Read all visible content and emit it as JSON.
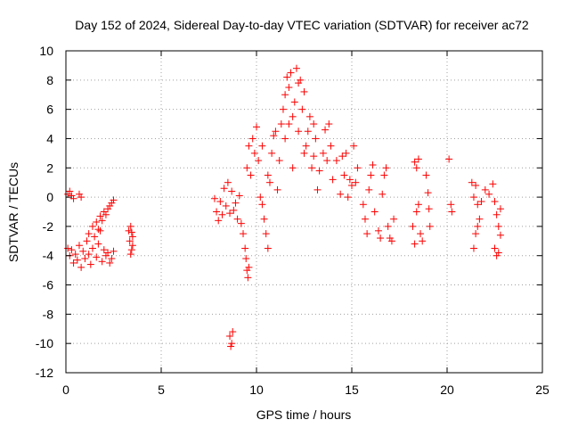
{
  "chart_data": {
    "type": "scatter",
    "title": "Day 152 of 2024, Sidereal Day-to-day VTEC variation (SDTVAR) for receiver ac72",
    "xlabel": "GPS time / hours",
    "ylabel": "SDTVAR / TECUs",
    "xlim": [
      0,
      25
    ],
    "ylim": [
      -12,
      10
    ],
    "xticks": [
      0,
      5,
      10,
      15,
      20,
      25
    ],
    "yticks": [
      -12,
      -10,
      -8,
      -6,
      -4,
      -2,
      0,
      2,
      4,
      6,
      8,
      10
    ],
    "grid": true,
    "marker": "+",
    "color": "#ff0000",
    "series": [
      {
        "name": "SDTVAR",
        "points": [
          [
            0.1,
            0.2
          ],
          [
            0.2,
            0.4
          ],
          [
            0.3,
            0.1
          ],
          [
            0.4,
            -0.1
          ],
          [
            0.7,
            0.2
          ],
          [
            0.8,
            0.0
          ],
          [
            0.1,
            -3.5
          ],
          [
            0.2,
            -4.0
          ],
          [
            0.3,
            -3.6
          ],
          [
            0.4,
            -4.5
          ],
          [
            0.5,
            -3.9
          ],
          [
            0.6,
            -4.3
          ],
          [
            0.7,
            -3.3
          ],
          [
            0.8,
            -4.8
          ],
          [
            0.9,
            -3.7
          ],
          [
            1.0,
            -4.2
          ],
          [
            1.1,
            -3.0
          ],
          [
            1.2,
            -3.9
          ],
          [
            1.3,
            -4.6
          ],
          [
            1.4,
            -3.5
          ],
          [
            1.5,
            -2.7
          ],
          [
            1.6,
            -4.1
          ],
          [
            1.7,
            -3.2
          ],
          [
            1.8,
            -2.3
          ],
          [
            1.9,
            -4.4
          ],
          [
            2.0,
            -3.6
          ],
          [
            2.1,
            -4.0
          ],
          [
            2.2,
            -3.8
          ],
          [
            2.3,
            -4.5
          ],
          [
            2.4,
            -4.2
          ],
          [
            2.5,
            -3.7
          ],
          [
            1.2,
            -2.5
          ],
          [
            1.4,
            -2.0
          ],
          [
            1.6,
            -1.7
          ],
          [
            1.7,
            -2.2
          ],
          [
            1.8,
            -1.3
          ],
          [
            1.9,
            -1.6
          ],
          [
            2.0,
            -1.0
          ],
          [
            2.1,
            -1.2
          ],
          [
            2.2,
            -0.8
          ],
          [
            2.3,
            -0.6
          ],
          [
            2.4,
            -0.4
          ],
          [
            2.5,
            -0.2
          ],
          [
            3.3,
            -2.3
          ],
          [
            3.35,
            -3.0
          ],
          [
            3.4,
            -2.0
          ],
          [
            3.45,
            -3.6
          ],
          [
            3.5,
            -2.7
          ],
          [
            3.4,
            -3.9
          ],
          [
            3.45,
            -2.4
          ],
          [
            3.5,
            -3.3
          ],
          [
            7.8,
            -0.1
          ],
          [
            7.9,
            -1.0
          ],
          [
            8.0,
            -1.6
          ],
          [
            8.1,
            -0.3
          ],
          [
            8.2,
            -1.2
          ],
          [
            8.3,
            0.6
          ],
          [
            8.4,
            -0.6
          ],
          [
            8.5,
            1.0
          ],
          [
            8.6,
            -1.1
          ],
          [
            8.7,
            0.4
          ],
          [
            8.8,
            -0.9
          ],
          [
            8.9,
            -0.4
          ],
          [
            9.0,
            -1.5
          ],
          [
            9.1,
            0.1
          ],
          [
            9.2,
            -1.8
          ],
          [
            9.3,
            -2.5
          ],
          [
            9.4,
            -3.5
          ],
          [
            9.45,
            -4.2
          ],
          [
            9.5,
            -5.0
          ],
          [
            9.55,
            -5.5
          ],
          [
            9.6,
            -4.8
          ],
          [
            9.5,
            2.0
          ],
          [
            9.6,
            3.5
          ],
          [
            9.7,
            1.5
          ],
          [
            9.8,
            4.0
          ],
          [
            9.9,
            3.0
          ],
          [
            10.0,
            4.8
          ],
          [
            10.1,
            2.5
          ],
          [
            10.2,
            0.0
          ],
          [
            10.3,
            -0.5
          ],
          [
            10.4,
            -1.5
          ],
          [
            10.5,
            -2.5
          ],
          [
            10.6,
            -3.5
          ],
          [
            10.7,
            1.0
          ],
          [
            10.8,
            3.0
          ],
          [
            10.9,
            4.2
          ],
          [
            11.0,
            4.5
          ],
          [
            11.1,
            0.5
          ],
          [
            11.2,
            2.5
          ],
          [
            11.3,
            5.0
          ],
          [
            11.4,
            6.0
          ],
          [
            11.5,
            7.0
          ],
          [
            11.6,
            8.2
          ],
          [
            11.7,
            7.5
          ],
          [
            11.8,
            8.5
          ],
          [
            11.9,
            5.5
          ],
          [
            12.0,
            6.5
          ],
          [
            12.1,
            8.8
          ],
          [
            12.2,
            7.8
          ],
          [
            12.3,
            8.0
          ],
          [
            12.4,
            6.0
          ],
          [
            12.5,
            7.2
          ],
          [
            12.6,
            3.5
          ],
          [
            12.7,
            4.5
          ],
          [
            12.8,
            5.5
          ],
          [
            12.9,
            2.0
          ],
          [
            13.0,
            2.8
          ],
          [
            13.1,
            4.0
          ],
          [
            13.2,
            0.5
          ],
          [
            13.3,
            1.8
          ],
          [
            13.5,
            3.0
          ],
          [
            13.6,
            4.6
          ],
          [
            13.7,
            2.5
          ],
          [
            13.8,
            5.0
          ],
          [
            13.9,
            3.5
          ],
          [
            14.0,
            1.2
          ],
          [
            14.2,
            2.5
          ],
          [
            14.4,
            0.2
          ],
          [
            14.6,
            1.5
          ],
          [
            14.8,
            0.0
          ],
          [
            14.5,
            2.8
          ],
          [
            14.7,
            3.0
          ],
          [
            14.9,
            1.2
          ],
          [
            15.0,
            0.8
          ],
          [
            15.1,
            3.5
          ],
          [
            15.2,
            1.0
          ],
          [
            15.3,
            2.0
          ],
          [
            11.5,
            4.0
          ],
          [
            11.7,
            5.0
          ],
          [
            12.2,
            4.5
          ],
          [
            13.0,
            5.0
          ],
          [
            12.5,
            3.0
          ],
          [
            11.9,
            2.0
          ],
          [
            10.6,
            1.5
          ],
          [
            10.3,
            3.5
          ],
          [
            8.6,
            -9.5
          ],
          [
            8.7,
            -10.0
          ],
          [
            8.75,
            -9.2
          ],
          [
            8.65,
            -10.2
          ],
          [
            15.6,
            -0.5
          ],
          [
            15.7,
            -1.5
          ],
          [
            15.8,
            -2.5
          ],
          [
            15.9,
            0.5
          ],
          [
            16.0,
            1.5
          ],
          [
            16.1,
            2.2
          ],
          [
            16.2,
            -1.0
          ],
          [
            16.4,
            -2.3
          ],
          [
            16.5,
            -2.8
          ],
          [
            16.6,
            0.2
          ],
          [
            16.7,
            1.5
          ],
          [
            16.8,
            2.0
          ],
          [
            16.9,
            -2.0
          ],
          [
            17.0,
            -2.8
          ],
          [
            17.1,
            -3.0
          ],
          [
            17.2,
            -1.5
          ],
          [
            18.2,
            -2.0
          ],
          [
            18.3,
            -3.2
          ],
          [
            18.4,
            -1.0
          ],
          [
            18.5,
            -0.5
          ],
          [
            18.6,
            -2.5
          ],
          [
            18.7,
            -3.0
          ],
          [
            18.3,
            2.4
          ],
          [
            18.4,
            2.0
          ],
          [
            18.5,
            2.6
          ],
          [
            18.9,
            1.5
          ],
          [
            19.0,
            0.3
          ],
          [
            19.05,
            -0.8
          ],
          [
            19.1,
            -2.0
          ],
          [
            20.1,
            2.6
          ],
          [
            20.2,
            -0.5
          ],
          [
            20.25,
            -1.0
          ],
          [
            21.3,
            1.0
          ],
          [
            21.4,
            0.0
          ],
          [
            21.5,
            0.8
          ],
          [
            21.6,
            -0.5
          ],
          [
            21.7,
            -1.5
          ],
          [
            21.5,
            -2.5
          ],
          [
            21.4,
            -3.5
          ],
          [
            21.6,
            -2.0
          ],
          [
            21.8,
            -0.3
          ],
          [
            22.0,
            0.5
          ],
          [
            22.2,
            0.2
          ],
          [
            22.4,
            0.9
          ],
          [
            22.5,
            -0.3
          ],
          [
            22.6,
            -1.2
          ],
          [
            22.7,
            -2.0
          ],
          [
            22.8,
            -2.6
          ],
          [
            22.5,
            -3.5
          ],
          [
            22.6,
            -4.0
          ],
          [
            22.7,
            -3.8
          ],
          [
            22.8,
            -0.8
          ]
        ]
      }
    ]
  }
}
